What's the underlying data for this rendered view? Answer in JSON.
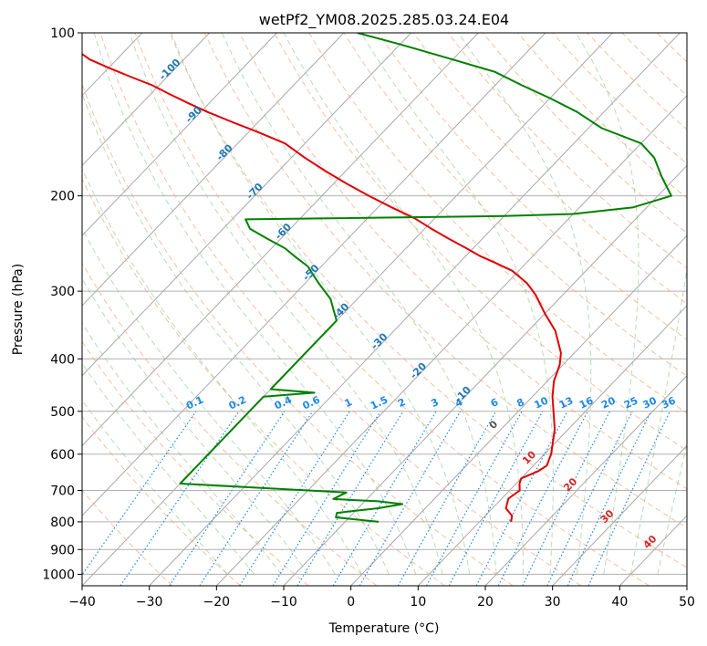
{
  "chart_data": {
    "type": "line",
    "subtype": "skew-t log-p",
    "title": "wetPf2_YM08.2025.285.03.24.E04",
    "xlabel": "Temperature (°C)",
    "ylabel": "Pressure (hPa)",
    "xlim": [
      -40,
      50
    ],
    "ylim": [
      1050,
      100
    ],
    "y_scale": "log",
    "x_ticks": [
      "−40",
      "−30",
      "−20",
      "−10",
      "0",
      "10",
      "20",
      "30",
      "40",
      "50"
    ],
    "y_ticks": [
      {
        "p": 100,
        "label": "100"
      },
      {
        "p": 200,
        "label": "200"
      },
      {
        "p": 300,
        "label": "300"
      },
      {
        "p": 400,
        "label": "400"
      },
      {
        "p": 500,
        "label": "500"
      },
      {
        "p": 600,
        "label": "600"
      },
      {
        "p": 700,
        "label": "700"
      },
      {
        "p": 800,
        "label": "800"
      },
      {
        "p": 900,
        "label": "900"
      },
      {
        "p": 1000,
        "label": "1000"
      }
    ],
    "grid": true,
    "isotherm_labels": [
      {
        "t": -100,
        "text": "-100"
      },
      {
        "t": -90,
        "text": "-90"
      },
      {
        "t": -80,
        "text": "-80"
      },
      {
        "t": -70,
        "text": "-70"
      },
      {
        "t": -60,
        "text": "-60"
      },
      {
        "t": -50,
        "text": "-50"
      },
      {
        "t": -40,
        "text": "-40"
      },
      {
        "t": -30,
        "text": "-30"
      },
      {
        "t": -20,
        "text": "-20"
      },
      {
        "t": -10,
        "text": "-10"
      }
    ],
    "warm_isotherm_labels": [
      {
        "t": 0,
        "text": "0"
      },
      {
        "t": 10,
        "text": "10"
      },
      {
        "t": 20,
        "text": "20"
      },
      {
        "t": 30,
        "text": "30"
      },
      {
        "t": 40,
        "text": "40"
      }
    ],
    "mixing_ratio_labels": [
      "0.1",
      "0.2",
      "0.4",
      "0.6",
      "1",
      "1.5",
      "2",
      "3",
      "4",
      "6",
      "8",
      "10",
      "13",
      "16",
      "20",
      "25",
      "30",
      "36"
    ],
    "series": [
      {
        "role": "temperature",
        "color": "#e00000",
        "points": [
          [
            14.7,
            800
          ],
          [
            14.0,
            780
          ],
          [
            12.0,
            755
          ],
          [
            11.0,
            725
          ],
          [
            11.5,
            700
          ],
          [
            10.5,
            680
          ],
          [
            10.0,
            665
          ],
          [
            11.5,
            645
          ],
          [
            12.0,
            630
          ],
          [
            11.0,
            600
          ],
          [
            8.0,
            540
          ],
          [
            3.0,
            470
          ],
          [
            1.0,
            440
          ],
          [
            -0.5,
            410
          ],
          [
            -2.0,
            390
          ],
          [
            -6.0,
            355
          ],
          [
            -10.0,
            330
          ],
          [
            -14.0,
            305
          ],
          [
            -17.0,
            290
          ],
          [
            -21.0,
            275
          ],
          [
            -25.0,
            265
          ],
          [
            -28.0,
            258
          ],
          [
            -31.0,
            250
          ],
          [
            -35.0,
            240
          ],
          [
            -39.0,
            230
          ],
          [
            -43.0,
            220
          ],
          [
            -48.0,
            210
          ],
          [
            -53.0,
            200
          ],
          [
            -58.0,
            190
          ],
          [
            -63.0,
            180
          ],
          [
            -68.0,
            170
          ],
          [
            -73.0,
            160
          ],
          [
            -79.0,
            152
          ],
          [
            -84.0,
            146
          ],
          [
            -89.0,
            140
          ],
          [
            -93.0,
            135
          ],
          [
            -97.0,
            130
          ],
          [
            -101.0,
            125
          ],
          [
            -106.0,
            120
          ],
          [
            -110.0,
            116
          ],
          [
            -114.0,
            112
          ],
          [
            -117.0,
            108
          ],
          [
            -121.0,
            104
          ],
          [
            -124.0,
            100
          ]
        ]
      },
      {
        "role": "dewpoint",
        "color": "#008000",
        "points": [
          [
            -5.0,
            800
          ],
          [
            -12.0,
            785
          ],
          [
            -12.5,
            770
          ],
          [
            -7.0,
            755
          ],
          [
            -4.0,
            742
          ],
          [
            -8.0,
            733
          ],
          [
            -15.0,
            726
          ],
          [
            -14.0,
            706
          ],
          [
            -40.0,
            680
          ],
          [
            -40.0,
            470
          ],
          [
            -33.0,
            462
          ],
          [
            -40.0,
            455
          ],
          [
            -40.0,
            360
          ],
          [
            -40.0,
            340
          ],
          [
            -44.0,
            310
          ],
          [
            -48.0,
            290
          ],
          [
            -52.0,
            270
          ],
          [
            -55.0,
            260
          ],
          [
            -58.0,
            250
          ],
          [
            -62.0,
            240
          ],
          [
            -66.0,
            230
          ],
          [
            -68.0,
            221
          ],
          [
            -30.0,
            218
          ],
          [
            -20.0,
            216
          ],
          [
            -12.0,
            210
          ],
          [
            -8.0,
            200
          ],
          [
            -12.0,
            185
          ],
          [
            -16.0,
            170
          ],
          [
            -20.0,
            160
          ],
          [
            -28.0,
            150
          ],
          [
            -34.0,
            140
          ],
          [
            -40.0,
            132
          ],
          [
            -46.0,
            125
          ],
          [
            -52.0,
            118
          ],
          [
            -60.0,
            112
          ],
          [
            -70.0,
            105
          ],
          [
            -78.0,
            100
          ]
        ]
      }
    ]
  }
}
